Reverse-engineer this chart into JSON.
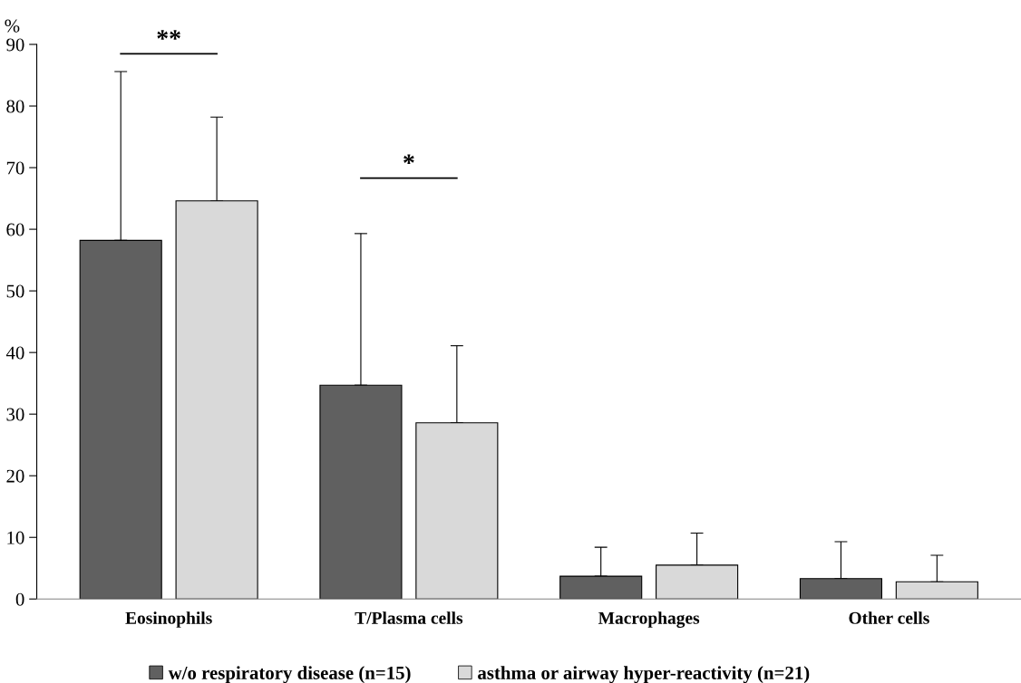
{
  "chart_data": {
    "type": "bar",
    "ylabel": "%",
    "categories": [
      "Eosinophils",
      "T/Plasma cells",
      "Macrophages",
      "Other cells"
    ],
    "series": [
      {
        "name": "w/o respiratory disease (n=15)",
        "color": "#606060",
        "values": [
          58.2,
          34.7,
          3.7,
          3.3
        ],
        "errors": [
          [
            58.2,
            85.6
          ],
          [
            34.7,
            59.3
          ],
          [
            3.7,
            8.4
          ],
          [
            3.3,
            9.3
          ]
        ]
      },
      {
        "name": "asthma or airway hyper-reactivity (n=21)",
        "color": "#d9d9d9",
        "values": [
          64.6,
          28.6,
          5.5,
          2.8
        ],
        "errors": [
          [
            64.6,
            78.2
          ],
          [
            28.6,
            41.1
          ],
          [
            5.5,
            10.7
          ],
          [
            2.8,
            7.1
          ]
        ]
      }
    ],
    "ylim": [
      0,
      90
    ],
    "yticks": [
      0,
      10,
      20,
      30,
      40,
      50,
      60,
      70,
      80,
      90
    ],
    "annotations": [
      "**",
      "*"
    ],
    "grid": false,
    "legend": "bottom"
  }
}
